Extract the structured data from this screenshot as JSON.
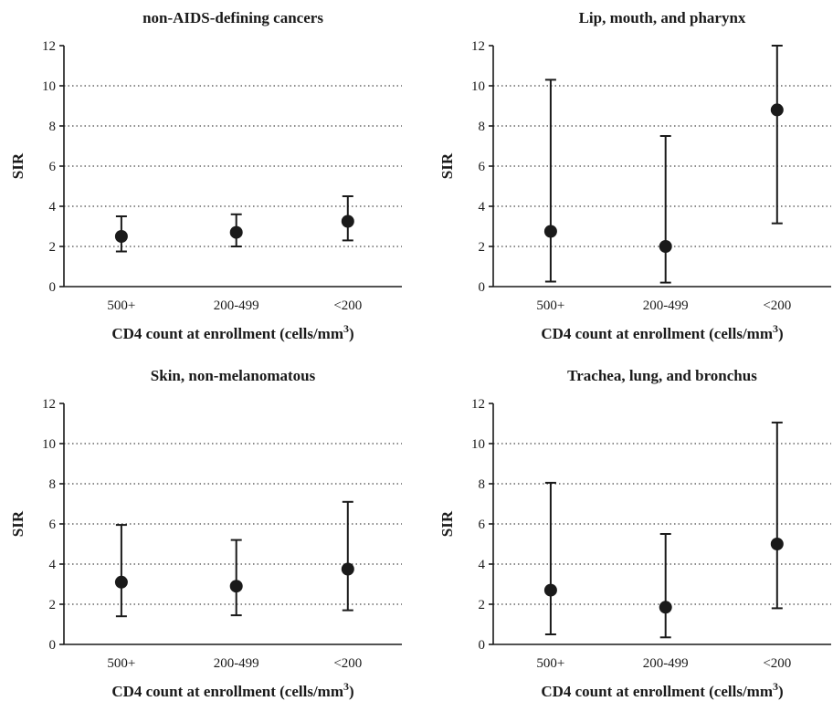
{
  "chart_data": [
    {
      "type": "scatter",
      "title": "non-AIDS-defining cancers",
      "xlabel": "CD4 count at enrollment (cells/mm",
      "xlabel_sup": "3",
      "xlabel_tail": ")",
      "ylabel": "SIR",
      "categories": [
        "500+",
        "200-499",
        "<200"
      ],
      "y_ticks": [
        "0",
        "2",
        "4",
        "6",
        "8",
        "10",
        "12"
      ],
      "ylim": [
        0,
        12
      ],
      "grid": "horizontal dotted",
      "values": [
        2.5,
        2.7,
        3.25
      ],
      "ci_low": [
        1.75,
        2.0,
        2.3
      ],
      "ci_high": [
        3.5,
        3.6,
        4.5
      ]
    },
    {
      "type": "scatter",
      "title": "Lip, mouth, and pharynx",
      "xlabel": "CD4 count at enrollment (cells/mm",
      "xlabel_sup": "3",
      "xlabel_tail": ")",
      "ylabel": "SIR",
      "categories": [
        "500+",
        "200-499",
        "<200"
      ],
      "y_ticks": [
        "0",
        "2",
        "4",
        "6",
        "8",
        "10",
        "12"
      ],
      "ylim": [
        0,
        12
      ],
      "grid": "horizontal dotted",
      "values": [
        2.75,
        2.0,
        8.8
      ],
      "ci_low": [
        0.25,
        0.2,
        3.15
      ],
      "ci_high": [
        10.3,
        7.5,
        12
      ]
    },
    {
      "type": "scatter",
      "title": "Skin, non-melanomatous",
      "xlabel": "CD4 count at enrollment (cells/mm",
      "xlabel_sup": "3",
      "xlabel_tail": ")",
      "ylabel": "SIR",
      "categories": [
        "500+",
        "200-499",
        "<200"
      ],
      "y_ticks": [
        "0",
        "2",
        "4",
        "6",
        "8",
        "10",
        "12"
      ],
      "ylim": [
        0,
        12
      ],
      "grid": "horizontal dotted",
      "values": [
        3.1,
        2.9,
        3.75
      ],
      "ci_low": [
        1.4,
        1.45,
        1.7
      ],
      "ci_high": [
        5.95,
        5.2,
        7.1
      ]
    },
    {
      "type": "scatter",
      "title": "Trachea, lung, and bronchus",
      "xlabel": "CD4 count at enrollment (cells/mm",
      "xlabel_sup": "3",
      "xlabel_tail": ")",
      "ylabel": "SIR",
      "categories": [
        "500+",
        "200-499",
        "<200"
      ],
      "y_ticks": [
        "0",
        "2",
        "4",
        "6",
        "8",
        "10",
        "12"
      ],
      "ylim": [
        0,
        12
      ],
      "grid": "horizontal dotted",
      "values": [
        2.7,
        1.85,
        5.0
      ],
      "ci_low": [
        0.5,
        0.35,
        1.8
      ],
      "ci_high": [
        8.05,
        5.5,
        11.05
      ]
    }
  ]
}
